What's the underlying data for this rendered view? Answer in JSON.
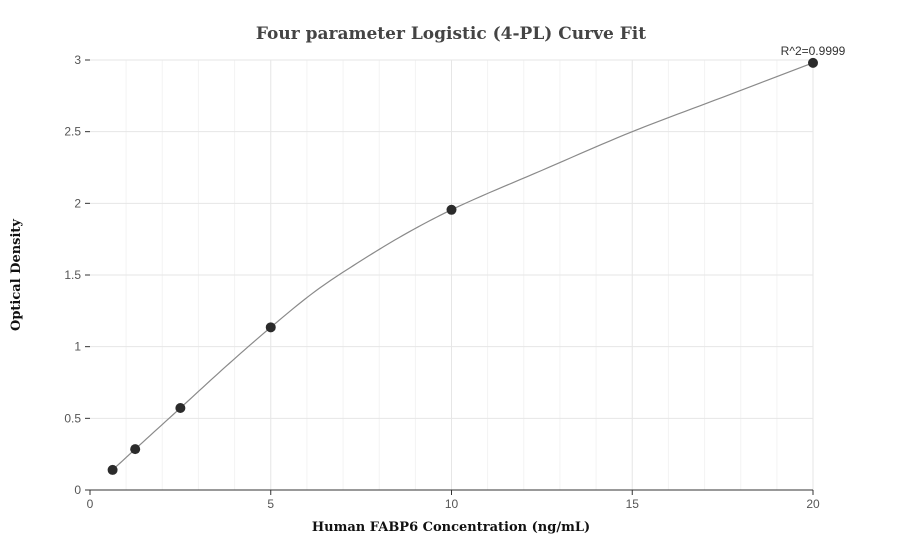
{
  "chart_data": {
    "type": "scatter",
    "title": "Four parameter Logistic (4-PL) Curve Fit",
    "xlabel": "Human FABP6 Concentration (ng/mL)",
    "ylabel": "Optical Density",
    "xlim": [
      0,
      20
    ],
    "ylim": [
      0,
      3
    ],
    "xticks": [
      0,
      5,
      10,
      15,
      20
    ],
    "yticks": [
      0,
      0.5,
      1,
      1.5,
      2,
      2.5,
      3
    ],
    "x_minor_step": 1,
    "grid": true,
    "series": [
      {
        "x": [
          0.625,
          1.25,
          2.5,
          5,
          10,
          20
        ],
        "y": [
          0.14,
          0.285,
          0.572,
          1.135,
          1.955,
          2.98
        ]
      }
    ],
    "fit": {
      "model": "4PL",
      "x_range": [
        0.625,
        20
      ],
      "x": [
        0.625,
        1.25,
        2.5,
        3.75,
        5,
        6.25,
        7.5,
        8.75,
        10,
        12.5,
        15,
        17.5,
        20
      ],
      "y": [
        0.14,
        0.285,
        0.572,
        0.86,
        1.135,
        1.39,
        1.6,
        1.79,
        1.955,
        2.23,
        2.5,
        2.74,
        2.98
      ]
    },
    "annotation": "R^2=0.9999"
  }
}
